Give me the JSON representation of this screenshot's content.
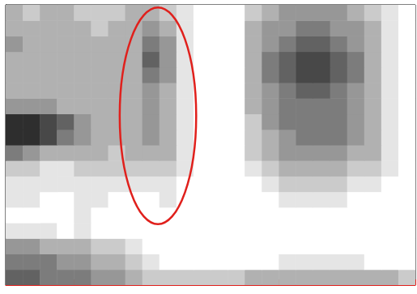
{
  "chart_data": {
    "type": "heatmap",
    "xlim": [
      0,
      6
    ],
    "xticks": [
      0,
      1,
      2,
      3,
      4,
      5,
      6
    ],
    "ylim": [
      0,
      18
    ],
    "tick_labels": false,
    "grid": false,
    "zlim": [
      0,
      9
    ],
    "cells": [
      [
        6,
        6,
        5,
        5,
        5,
        4,
        4,
        3,
        2,
        2,
        2,
        2,
        2,
        2,
        3,
        3,
        3,
        3,
        3,
        3,
        3,
        3,
        3,
        2
      ],
      [
        5,
        5,
        5,
        4,
        4,
        3,
        3,
        2,
        1,
        0,
        0,
        0,
        0,
        0,
        0,
        0,
        1,
        1,
        1,
        1,
        1,
        0,
        0,
        0
      ],
      [
        4,
        4,
        3,
        3,
        3,
        2,
        2,
        1,
        0,
        0,
        0,
        0,
        0,
        0,
        0,
        0,
        0,
        0,
        0,
        0,
        0,
        0,
        0,
        0
      ],
      [
        1,
        1,
        1,
        0,
        1,
        0,
        0,
        0,
        0,
        0,
        0,
        0,
        0,
        0,
        0,
        0,
        0,
        0,
        0,
        0,
        0,
        0,
        0,
        0
      ],
      [
        0,
        0,
        0,
        0,
        1,
        0,
        0,
        0,
        0,
        0,
        0,
        0,
        0,
        0,
        0,
        0,
        0,
        0,
        0,
        0,
        0,
        0,
        0,
        0
      ],
      [
        1,
        1,
        0,
        0,
        1,
        1,
        0,
        0,
        0,
        1,
        0,
        0,
        0,
        0,
        0,
        0,
        1,
        1,
        1,
        1,
        0,
        0,
        0,
        0
      ],
      [
        1,
        1,
        1,
        1,
        1,
        1,
        1,
        1,
        1,
        1,
        0,
        0,
        0,
        0,
        0,
        1,
        2,
        2,
        2,
        2,
        1,
        1,
        0,
        0
      ],
      [
        2,
        2,
        1,
        1,
        2,
        2,
        2,
        2,
        2,
        2,
        1,
        0,
        0,
        0,
        1,
        2,
        3,
        3,
        3,
        3,
        2,
        2,
        1,
        0
      ],
      [
        5,
        4,
        3,
        3,
        3,
        3,
        2,
        3,
        3,
        3,
        1,
        0,
        0,
        0,
        2,
        3,
        4,
        4,
        4,
        4,
        3,
        3,
        1,
        0
      ],
      [
        8,
        8,
        7,
        5,
        4,
        3,
        3,
        3,
        4,
        3,
        1,
        0,
        0,
        0,
        2,
        3,
        4,
        5,
        5,
        5,
        4,
        3,
        1,
        0
      ],
      [
        8,
        8,
        7,
        6,
        4,
        3,
        3,
        3,
        4,
        3,
        1,
        0,
        0,
        0,
        2,
        4,
        5,
        5,
        5,
        5,
        4,
        3,
        1,
        0
      ],
      [
        4,
        4,
        4,
        3,
        3,
        3,
        3,
        3,
        4,
        3,
        1,
        0,
        0,
        0,
        3,
        4,
        5,
        5,
        5,
        5,
        4,
        3,
        1,
        0
      ],
      [
        3,
        3,
        3,
        3,
        3,
        3,
        3,
        3,
        4,
        3,
        1,
        0,
        0,
        0,
        3,
        4,
        5,
        6,
        6,
        5,
        4,
        3,
        1,
        0
      ],
      [
        3,
        3,
        3,
        3,
        3,
        3,
        3,
        3,
        5,
        4,
        1,
        0,
        0,
        0,
        3,
        5,
        6,
        7,
        7,
        6,
        5,
        3,
        1,
        0
      ],
      [
        3,
        3,
        3,
        3,
        3,
        3,
        3,
        3,
        6,
        4,
        1,
        0,
        0,
        0,
        3,
        5,
        6,
        7,
        7,
        6,
        5,
        3,
        1,
        0
      ],
      [
        4,
        3,
        3,
        3,
        3,
        3,
        3,
        3,
        5,
        4,
        1,
        0,
        0,
        0,
        3,
        4,
        5,
        6,
        6,
        5,
        4,
        3,
        1,
        0
      ],
      [
        3,
        3,
        3,
        3,
        3,
        2,
        3,
        3,
        4,
        3,
        1,
        0,
        0,
        0,
        3,
        4,
        4,
        5,
        5,
        4,
        4,
        3,
        1,
        0
      ],
      [
        3,
        2,
        3,
        3,
        2,
        2,
        2,
        3,
        3,
        2,
        1,
        0,
        0,
        0,
        2,
        3,
        4,
        4,
        4,
        4,
        3,
        2,
        1,
        0
      ]
    ],
    "annotations": [
      {
        "shape": "ellipse",
        "center": [
          2.23,
          10.87
        ],
        "radius": [
          0.56,
          6.97
        ],
        "color": "#e0201c"
      }
    ]
  }
}
